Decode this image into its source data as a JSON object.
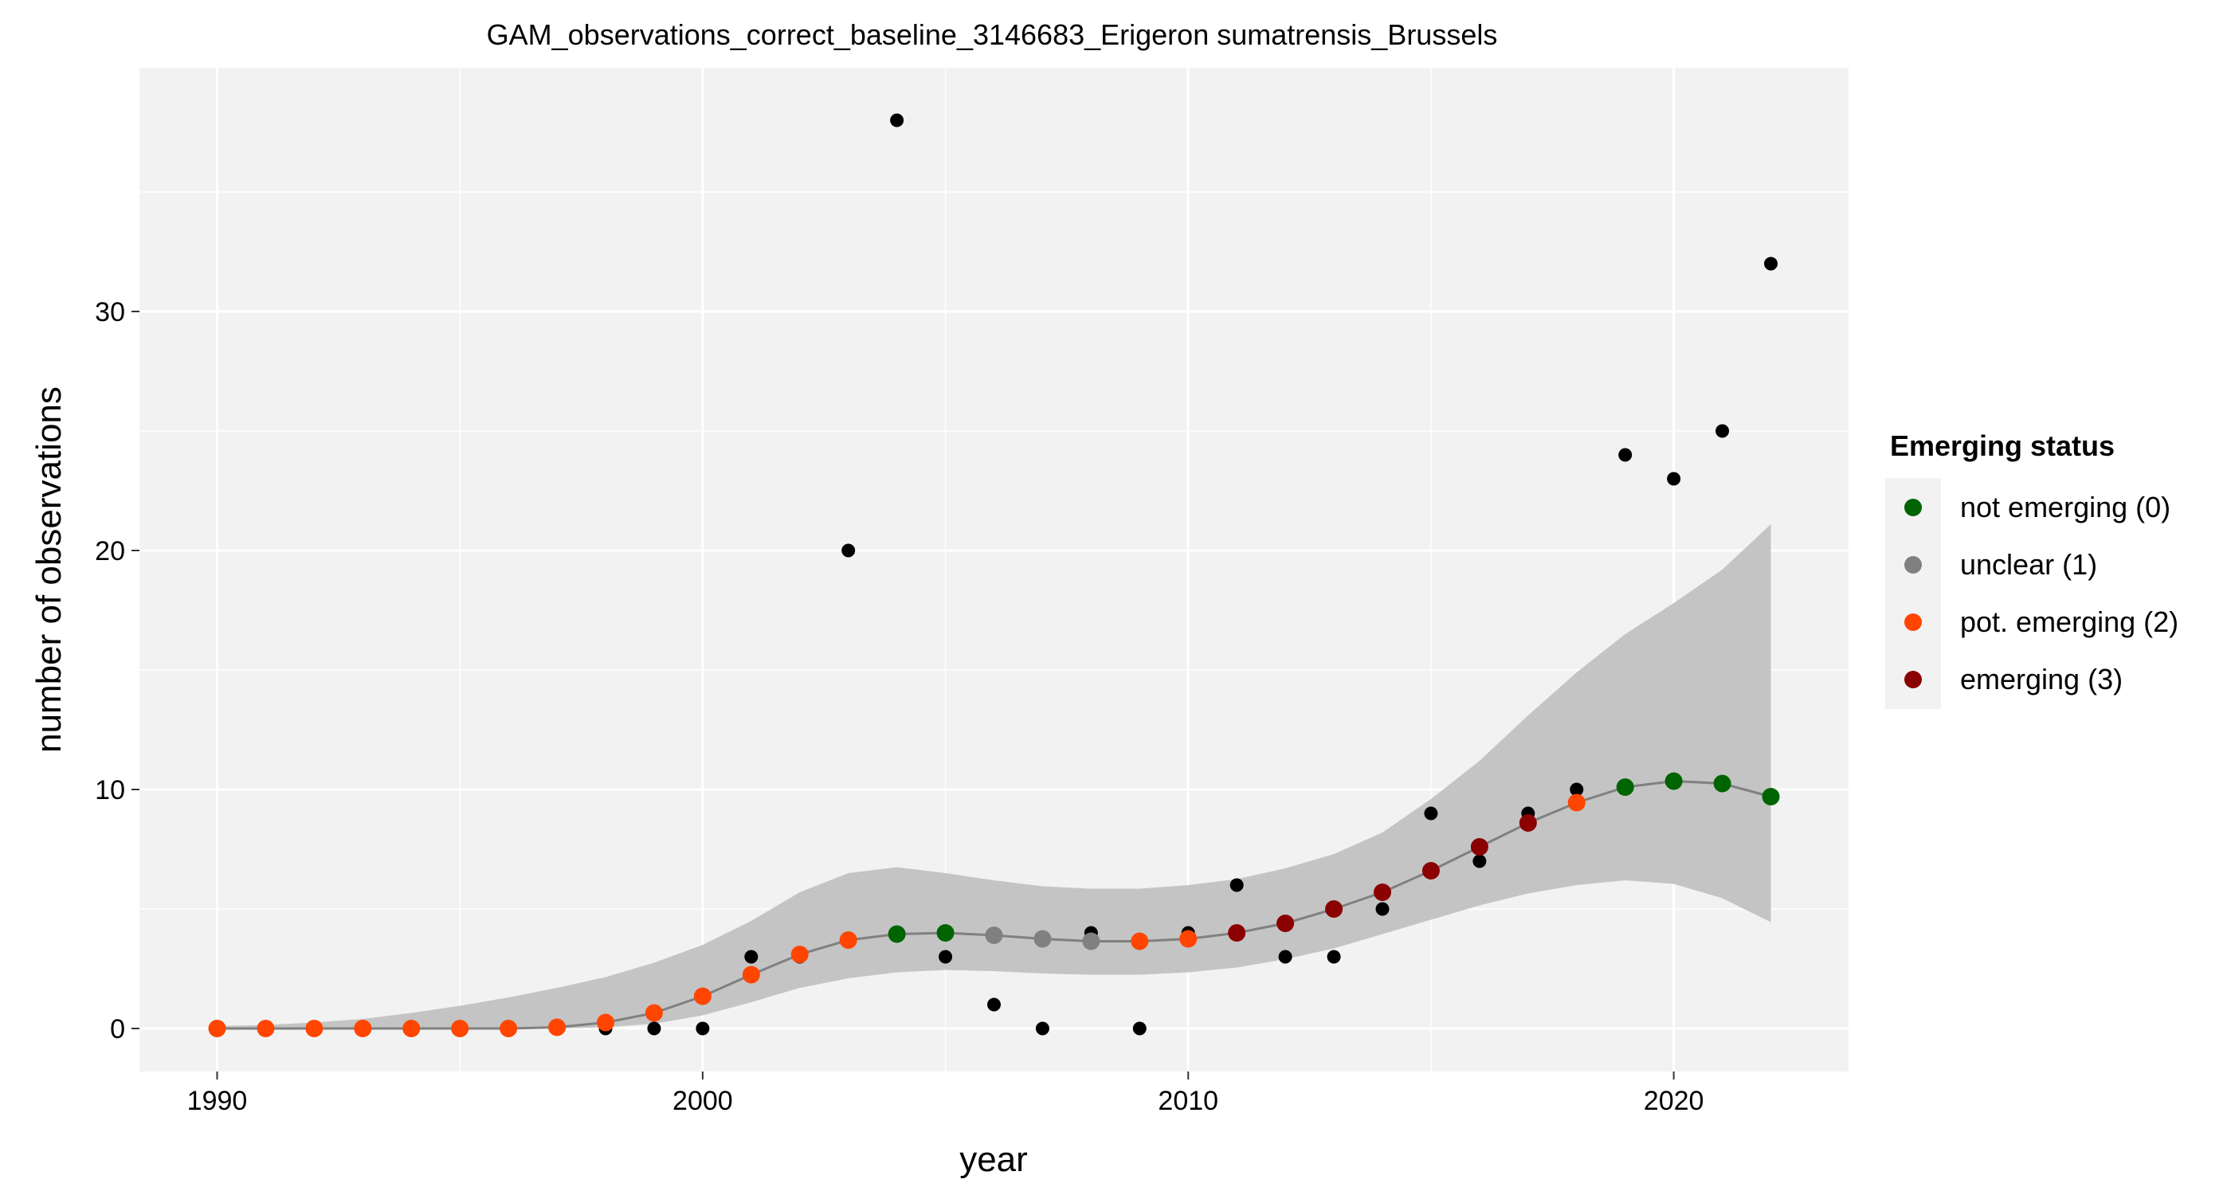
{
  "chart_data": {
    "type": "scatter",
    "title": "GAM_observations_correct_baseline_3146683_Erigeron sumatrensis_Brussels",
    "xlabel": "year",
    "ylabel": "number of observations",
    "xlim": [
      1988.4,
      2023.6
    ],
    "ylim": [
      -1.8,
      40.2
    ],
    "xticks": [
      1990,
      2000,
      2010,
      2020
    ],
    "yticks": [
      0,
      10,
      20,
      30
    ],
    "grid": true,
    "legend": {
      "title": "Emerging status",
      "placement": "right",
      "entries": [
        {
          "label": "not emerging (0)",
          "color": "#006400"
        },
        {
          "label": "unclear (1)",
          "color": "#808080"
        },
        {
          "label": "pot. emerging (2)",
          "color": "#ff4500"
        },
        {
          "label": "emerging (3)",
          "color": "#8b0000"
        }
      ]
    },
    "observations": {
      "color": "#000000",
      "points": [
        [
          1990,
          0
        ],
        [
          1991,
          0
        ],
        [
          1992,
          0
        ],
        [
          1993,
          0
        ],
        [
          1994,
          0
        ],
        [
          1995,
          0
        ],
        [
          1996,
          0
        ],
        [
          1997,
          0
        ],
        [
          1998,
          0
        ],
        [
          1999,
          0
        ],
        [
          2000,
          0
        ],
        [
          2001,
          3
        ],
        [
          2002,
          3
        ],
        [
          2003,
          20
        ],
        [
          2004,
          38
        ],
        [
          2005,
          3
        ],
        [
          2006,
          1
        ],
        [
          2007,
          0
        ],
        [
          2008,
          4
        ],
        [
          2009,
          0
        ],
        [
          2010,
          4
        ],
        [
          2011,
          6
        ],
        [
          2012,
          3
        ],
        [
          2013,
          3
        ],
        [
          2014,
          5
        ],
        [
          2015,
          9
        ],
        [
          2016,
          7
        ],
        [
          2017,
          9
        ],
        [
          2018,
          10
        ],
        [
          2019,
          24
        ],
        [
          2020,
          23
        ],
        [
          2021,
          25
        ],
        [
          2022,
          32
        ]
      ]
    },
    "fit": {
      "line_color": "#808080",
      "band_color": "#c4c4c4",
      "points": [
        {
          "x": 1990,
          "y": 0.0,
          "lo": 0.0,
          "hi": 0.1,
          "status": 2
        },
        {
          "x": 1991,
          "y": 0.0,
          "lo": 0.0,
          "hi": 0.15,
          "status": 2
        },
        {
          "x": 1992,
          "y": 0.0,
          "lo": 0.0,
          "hi": 0.25,
          "status": 2
        },
        {
          "x": 1993,
          "y": 0.0,
          "lo": 0.0,
          "hi": 0.4,
          "status": 2
        },
        {
          "x": 1994,
          "y": 0.0,
          "lo": 0.0,
          "hi": 0.65,
          "status": 2
        },
        {
          "x": 1995,
          "y": 0.0,
          "lo": 0.0,
          "hi": 0.95,
          "status": 2
        },
        {
          "x": 1996,
          "y": 0.0,
          "lo": 0.0,
          "hi": 1.3,
          "status": 2
        },
        {
          "x": 1997,
          "y": 0.05,
          "lo": 0.0,
          "hi": 1.7,
          "status": 2
        },
        {
          "x": 1998,
          "y": 0.25,
          "lo": 0.05,
          "hi": 2.15,
          "status": 2
        },
        {
          "x": 1999,
          "y": 0.65,
          "lo": 0.2,
          "hi": 2.75,
          "status": 2
        },
        {
          "x": 2000,
          "y": 1.35,
          "lo": 0.55,
          "hi": 3.5,
          "status": 2
        },
        {
          "x": 2001,
          "y": 2.25,
          "lo": 1.1,
          "hi": 4.5,
          "status": 2
        },
        {
          "x": 2002,
          "y": 3.1,
          "lo": 1.7,
          "hi": 5.7,
          "status": 2
        },
        {
          "x": 2003,
          "y": 3.7,
          "lo": 2.1,
          "hi": 6.5,
          "status": 2
        },
        {
          "x": 2004,
          "y": 3.95,
          "lo": 2.35,
          "hi": 6.75,
          "status": 0
        },
        {
          "x": 2005,
          "y": 4.0,
          "lo": 2.45,
          "hi": 6.5,
          "status": 0
        },
        {
          "x": 2006,
          "y": 3.9,
          "lo": 2.4,
          "hi": 6.2,
          "status": 1
        },
        {
          "x": 2007,
          "y": 3.75,
          "lo": 2.3,
          "hi": 5.95,
          "status": 1
        },
        {
          "x": 2008,
          "y": 3.65,
          "lo": 2.25,
          "hi": 5.85,
          "status": 1
        },
        {
          "x": 2009,
          "y": 3.65,
          "lo": 2.25,
          "hi": 5.85,
          "status": 2
        },
        {
          "x": 2010,
          "y": 3.75,
          "lo": 2.35,
          "hi": 6.0,
          "status": 2
        },
        {
          "x": 2011,
          "y": 4.0,
          "lo": 2.55,
          "hi": 6.25,
          "status": 3
        },
        {
          "x": 2012,
          "y": 4.4,
          "lo": 2.9,
          "hi": 6.7,
          "status": 3
        },
        {
          "x": 2013,
          "y": 5.0,
          "lo": 3.35,
          "hi": 7.3,
          "status": 3
        },
        {
          "x": 2014,
          "y": 5.7,
          "lo": 3.95,
          "hi": 8.2,
          "status": 3
        },
        {
          "x": 2015,
          "y": 6.6,
          "lo": 4.55,
          "hi": 9.6,
          "status": 3
        },
        {
          "x": 2016,
          "y": 7.6,
          "lo": 5.15,
          "hi": 11.2,
          "status": 3
        },
        {
          "x": 2017,
          "y": 8.6,
          "lo": 5.65,
          "hi": 13.1,
          "status": 3
        },
        {
          "x": 2018,
          "y": 9.45,
          "lo": 6.0,
          "hi": 14.9,
          "status": 2
        },
        {
          "x": 2019,
          "y": 10.1,
          "lo": 6.2,
          "hi": 16.5,
          "status": 0
        },
        {
          "x": 2020,
          "y": 10.35,
          "lo": 6.05,
          "hi": 17.8,
          "status": 0
        },
        {
          "x": 2021,
          "y": 10.25,
          "lo": 5.45,
          "hi": 19.2,
          "status": 0
        },
        {
          "x": 2022,
          "y": 9.7,
          "lo": 4.45,
          "hi": 21.1,
          "status": 0
        }
      ]
    }
  }
}
